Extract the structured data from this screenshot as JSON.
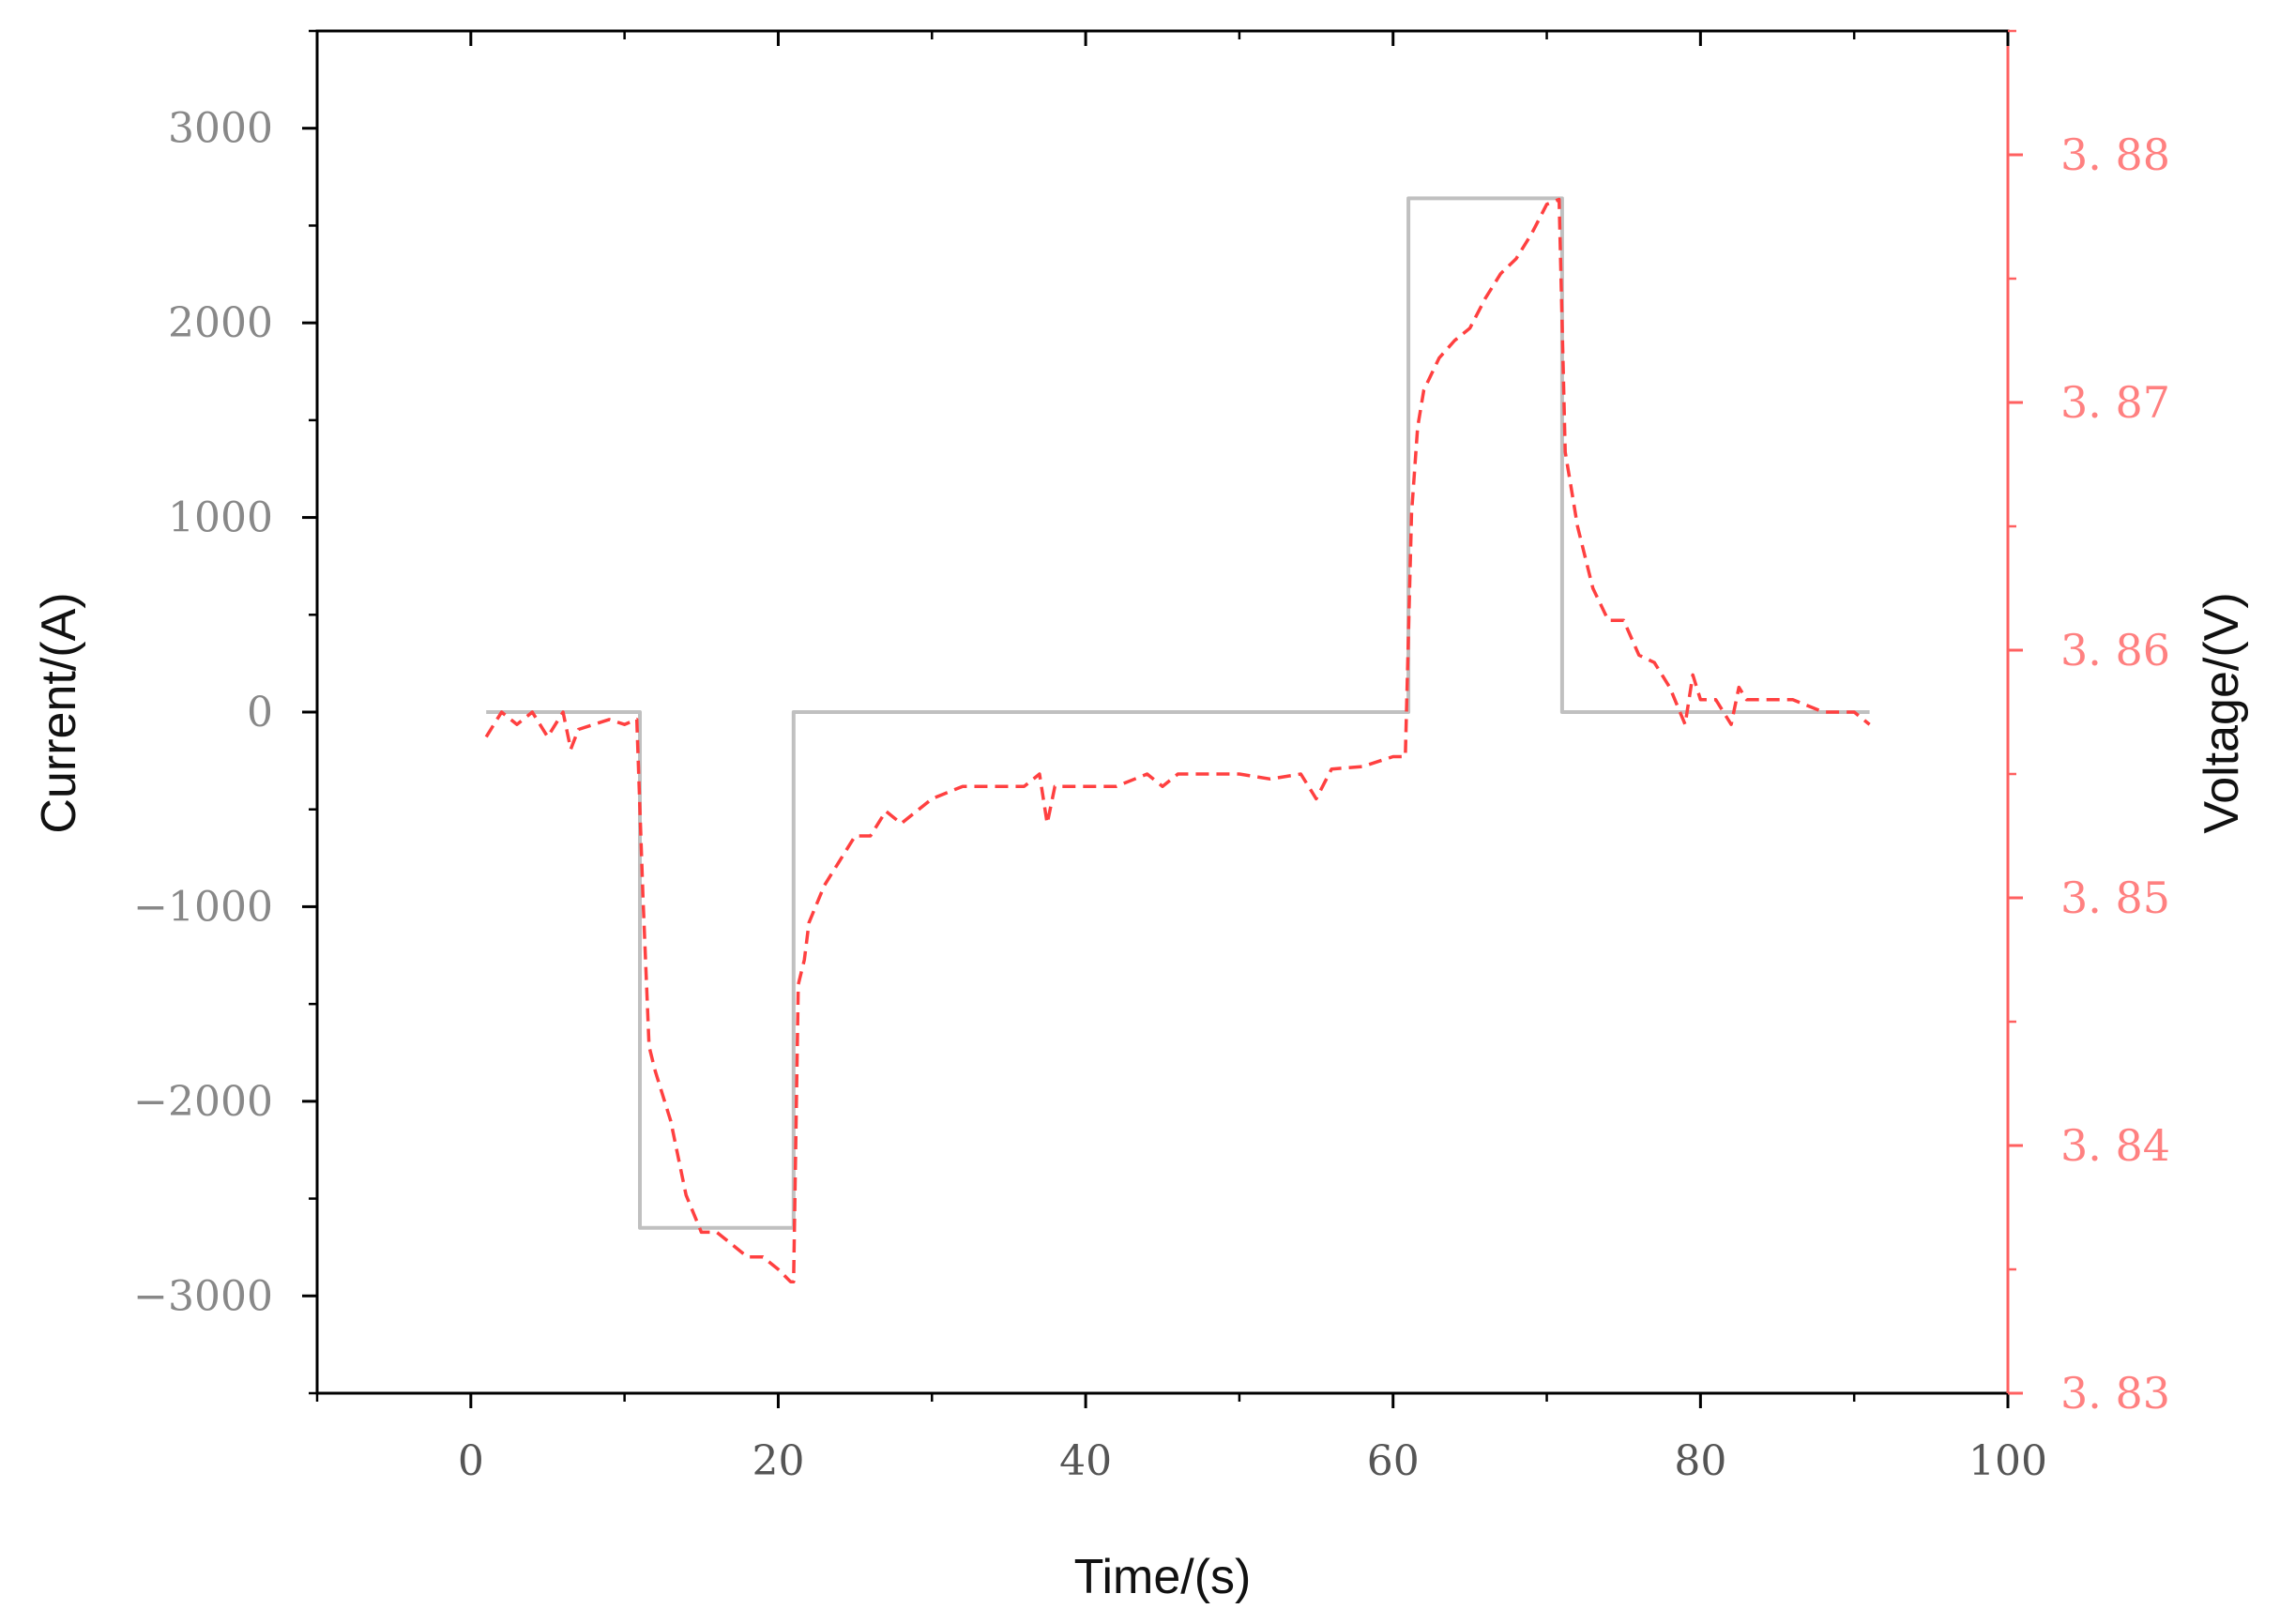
{
  "chart_data": {
    "type": "line",
    "xlabel": "Time/(s)",
    "ylabel_left": "Current/(A)",
    "ylabel_right": "Voltage/(V)",
    "xlim": [
      -10,
      100
    ],
    "ylim_left": [
      -3500,
      3500
    ],
    "ylim_right": [
      3.83,
      3.885
    ],
    "x_ticks": [
      0,
      20,
      40,
      60,
      80,
      100
    ],
    "y_left_ticks": [
      3000,
      2000,
      1000,
      0,
      -1000,
      -2000,
      -3000
    ],
    "y_right_ticks": [
      3.88,
      3.87,
      3.86,
      3.85,
      3.84,
      3.83
    ],
    "x_tick_labels": [
      "0",
      "20",
      "40",
      "60",
      "80",
      "100"
    ],
    "y_left_tick_labels": [
      "3000",
      "2000",
      "1000",
      "0",
      "−1000",
      "−2000",
      "−3000"
    ],
    "y_right_tick_labels": [
      "3. 88",
      "3. 87",
      "3. 86",
      "3. 85",
      "3. 84",
      "3. 83"
    ],
    "grid": false,
    "colors": {
      "current": "#c0c0c0",
      "voltage": "#ff4040",
      "right_axis": "#ff6060",
      "frame": "#000000"
    },
    "series": [
      {
        "axis": "left",
        "style": "solid",
        "x": [
          1,
          11,
          11,
          21,
          21,
          61,
          61,
          71,
          71,
          91
        ],
        "y": [
          0,
          0,
          -2650,
          -2650,
          0,
          0,
          2640,
          2640,
          0,
          0
        ]
      },
      {
        "axis": "right",
        "style": "dashed",
        "x": [
          1,
          2,
          3,
          4,
          5,
          6,
          6.5,
          7,
          8,
          9,
          10,
          10.8,
          11.2,
          11.6,
          12,
          13,
          14,
          15,
          16,
          17,
          18,
          19,
          20,
          20.8,
          21,
          21.3,
          21.7,
          22,
          23,
          24,
          25,
          26,
          27,
          28,
          29,
          30,
          32,
          34,
          36,
          37,
          37.5,
          38,
          39,
          40,
          42,
          44,
          45,
          46,
          48,
          50,
          52,
          54,
          55,
          56,
          58,
          60,
          60.8,
          61.2,
          61.6,
          62,
          63,
          64,
          65,
          66,
          67,
          68,
          69,
          70,
          70.8,
          71.2,
          71.6,
          72,
          73,
          74,
          75,
          76,
          77,
          78,
          79,
          79.5,
          80,
          81,
          82,
          82.5,
          83,
          84,
          86,
          88,
          89,
          90,
          91
        ],
        "y": [
          3.8565,
          3.8575,
          3.857,
          3.8575,
          3.8565,
          3.8575,
          3.856,
          3.8568,
          3.857,
          3.8572,
          3.857,
          3.8572,
          3.85,
          3.844,
          3.843,
          3.841,
          3.838,
          3.8365,
          3.8365,
          3.836,
          3.8355,
          3.8355,
          3.835,
          3.8345,
          3.8345,
          3.8465,
          3.8475,
          3.849,
          3.8505,
          3.8515,
          3.8525,
          3.8525,
          3.8535,
          3.853,
          3.8535,
          3.854,
          3.8545,
          3.8545,
          3.8545,
          3.855,
          3.853,
          3.8545,
          3.8545,
          3.8545,
          3.8545,
          3.855,
          3.8545,
          3.855,
          3.855,
          3.855,
          3.8548,
          3.855,
          3.854,
          3.8552,
          3.8553,
          3.8557,
          3.8557,
          3.8655,
          3.869,
          3.8705,
          3.8718,
          3.8725,
          3.873,
          3.8742,
          3.8752,
          3.8758,
          3.8768,
          3.878,
          3.8782,
          3.868,
          3.8665,
          3.865,
          3.8625,
          3.8612,
          3.8612,
          3.8598,
          3.8595,
          3.8585,
          3.857,
          3.859,
          3.858,
          3.858,
          3.857,
          3.8585,
          3.858,
          3.858,
          3.858,
          3.8575,
          3.8575,
          3.8575,
          3.857
        ]
      }
    ]
  }
}
